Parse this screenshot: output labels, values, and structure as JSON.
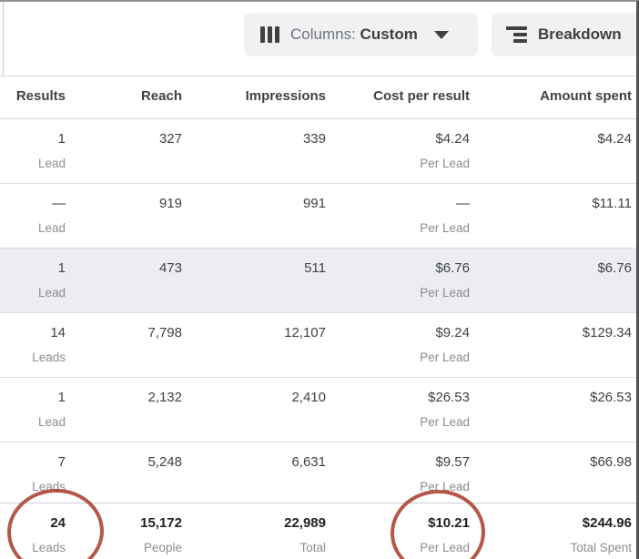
{
  "toolbar": {
    "columns_label": "Columns:",
    "columns_value": "Custom",
    "breakdown_label": "Breakdown"
  },
  "table": {
    "headers": [
      "Results",
      "Reach",
      "Impressions",
      "Cost per result",
      "Amount spent"
    ],
    "rows": [
      {
        "results": "1",
        "results_label": "Lead",
        "reach": "327",
        "impressions": "339",
        "cost": "$4.24",
        "cost_label": "Per Lead",
        "spent": "$4.24"
      },
      {
        "results": "—",
        "results_label": "Lead",
        "reach": "919",
        "impressions": "991",
        "cost": "—",
        "cost_label": "Per Lead",
        "spent": "$11.11"
      },
      {
        "results": "1",
        "results_label": "Lead",
        "reach": "473",
        "impressions": "511",
        "cost": "$6.76",
        "cost_label": "Per Lead",
        "spent": "$6.76"
      },
      {
        "results": "14",
        "results_label": "Leads",
        "reach": "7,798",
        "impressions": "12,107",
        "cost": "$9.24",
        "cost_label": "Per Lead",
        "spent": "$129.34"
      },
      {
        "results": "1",
        "results_label": "Lead",
        "reach": "2,132",
        "impressions": "2,410",
        "cost": "$26.53",
        "cost_label": "Per Lead",
        "spent": "$26.53"
      },
      {
        "results": "7",
        "results_label": "Leads",
        "reach": "5,248",
        "impressions": "6,631",
        "cost": "$9.57",
        "cost_label": "Per Lead",
        "spent": "$66.98"
      }
    ],
    "highlighted_row_index": 2,
    "totals": {
      "results": "24",
      "results_label": "Leads",
      "reach": "15,172",
      "reach_label": "People",
      "impressions": "22,989",
      "impressions_label": "Total",
      "cost": "$10.21",
      "cost_label": "Per Lead",
      "spent": "$244.96",
      "spent_label": "Total Spent"
    }
  },
  "annotations": {
    "circle_color": "#a83929",
    "circled_values": [
      "24 Leads",
      "$10.21 Per Lead"
    ]
  }
}
